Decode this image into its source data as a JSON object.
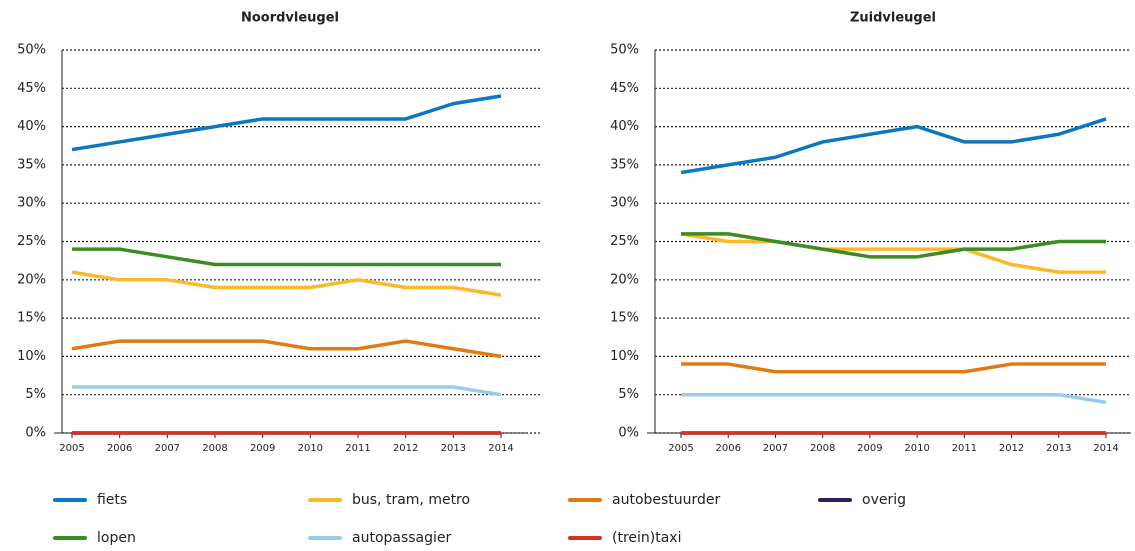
{
  "chart_data": [
    {
      "type": "line",
      "title": "Noordvleugel",
      "categories": [
        "2005",
        "2006",
        "2007",
        "2008",
        "2009",
        "2010",
        "2011",
        "2012",
        "2013",
        "2014"
      ],
      "ylim": [
        0,
        50
      ],
      "yticks": [
        {
          "value": 0,
          "label": "0%"
        },
        {
          "value": 5,
          "label": "5%"
        },
        {
          "value": 10,
          "label": "10%"
        },
        {
          "value": 15,
          "label": "15%"
        },
        {
          "value": 20,
          "label": "20%"
        },
        {
          "value": 25,
          "label": "25%"
        },
        {
          "value": 30,
          "label": "30%"
        },
        {
          "value": 35,
          "label": "35%"
        },
        {
          "value": 40,
          "label": "40%"
        },
        {
          "value": 45,
          "label": "45%"
        },
        {
          "value": 50,
          "label": "50%"
        }
      ],
      "grid": true,
      "series": [
        {
          "values": [
            37,
            38,
            39,
            40,
            41,
            41,
            41,
            41,
            43,
            44
          ]
        },
        {
          "values": [
            21,
            20,
            20,
            19,
            19,
            19,
            20,
            19,
            19,
            18
          ]
        },
        {
          "values": [
            11,
            12,
            12,
            12,
            12,
            11,
            11,
            12,
            11,
            10
          ]
        },
        {
          "values": [
            0,
            0,
            0,
            0,
            0,
            0,
            0,
            0,
            0,
            0
          ]
        },
        {
          "values": [
            24,
            24,
            23,
            22,
            22,
            22,
            22,
            22,
            22,
            22
          ]
        },
        {
          "values": [
            6,
            6,
            6,
            6,
            6,
            6,
            6,
            6,
            6,
            5
          ]
        },
        {
          "values": [
            0,
            0,
            0,
            0,
            0,
            0,
            0,
            0,
            0,
            0
          ]
        }
      ]
    },
    {
      "type": "line",
      "title": "Zuidvleugel",
      "categories": [
        "2005",
        "2006",
        "2007",
        "2008",
        "2009",
        "2010",
        "2011",
        "2012",
        "2013",
        "2014"
      ],
      "ylim": [
        0,
        50
      ],
      "yticks": [
        {
          "value": 0,
          "label": "0%"
        },
        {
          "value": 5,
          "label": "5%"
        },
        {
          "value": 10,
          "label": "10%"
        },
        {
          "value": 15,
          "label": "15%"
        },
        {
          "value": 20,
          "label": "20%"
        },
        {
          "value": 25,
          "label": "25%"
        },
        {
          "value": 30,
          "label": "30%"
        },
        {
          "value": 35,
          "label": "35%"
        },
        {
          "value": 40,
          "label": "40%"
        },
        {
          "value": 45,
          "label": "45%"
        },
        {
          "value": 50,
          "label": "50%"
        }
      ],
      "grid": true,
      "series": [
        {
          "values": [
            34,
            35,
            36,
            38,
            39,
            40,
            38,
            38,
            39,
            41
          ]
        },
        {
          "values": [
            26,
            25,
            25,
            24,
            24,
            24,
            24,
            22,
            21,
            21
          ]
        },
        {
          "values": [
            9,
            9,
            8,
            8,
            8,
            8,
            8,
            9,
            9,
            9
          ]
        },
        {
          "values": [
            0,
            0,
            0,
            0,
            0,
            0,
            0,
            0,
            0,
            0
          ]
        },
        {
          "values": [
            26,
            26,
            25,
            24,
            23,
            23,
            24,
            24,
            25,
            25
          ]
        },
        {
          "values": [
            5,
            5,
            5,
            5,
            5,
            5,
            5,
            5,
            5,
            4
          ]
        },
        {
          "values": [
            0,
            0,
            0,
            0,
            0,
            0,
            0,
            0,
            0,
            0
          ]
        }
      ]
    }
  ],
  "legend": [
    {
      "name": "fiets",
      "color": "#0a77c0"
    },
    {
      "name": "bus, tram, metro",
      "color": "#fbb82a"
    },
    {
      "name": "autobestuurder",
      "color": "#e07b10"
    },
    {
      "name": "overig",
      "color": "#3b1a5e"
    },
    {
      "name": "lopen",
      "color": "#3d8b23"
    },
    {
      "name": "autopassagier",
      "color": "#9acbe8"
    },
    {
      "name": "(trein)taxi",
      "color": "#d6322a"
    }
  ]
}
